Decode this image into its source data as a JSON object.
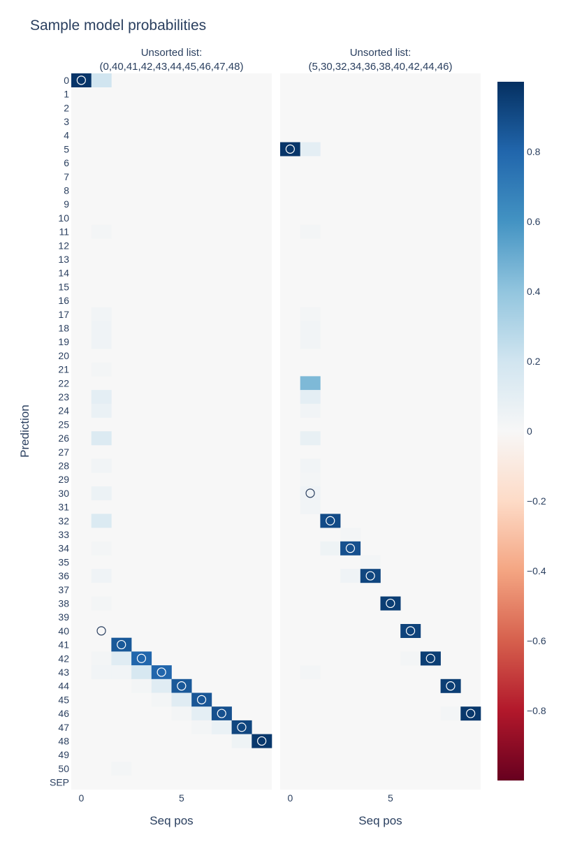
{
  "chart_data": {
    "type": "heatmap",
    "title": "Sample model probabilities",
    "ylabel": "Prediction",
    "y_categories": [
      "0",
      "1",
      "2",
      "3",
      "4",
      "5",
      "6",
      "7",
      "8",
      "9",
      "10",
      "11",
      "12",
      "13",
      "14",
      "15",
      "16",
      "17",
      "18",
      "19",
      "20",
      "21",
      "22",
      "23",
      "24",
      "25",
      "26",
      "27",
      "28",
      "29",
      "30",
      "31",
      "32",
      "33",
      "34",
      "35",
      "36",
      "37",
      "38",
      "39",
      "40",
      "41",
      "42",
      "43",
      "44",
      "45",
      "46",
      "47",
      "48",
      "49",
      "50",
      "SEP"
    ],
    "panels": [
      {
        "subtitle_line1": "Unsorted list:",
        "subtitle_line2": "(0,40,41,42,43,44,45,46,47,48)",
        "xlabel": "Seq pos",
        "x_ticks": [
          0,
          5
        ],
        "x_tick_labels": [
          "0",
          "5"
        ],
        "n_positions": 10,
        "cells": [
          {
            "pos": 0,
            "pred": 0,
            "value": 0.98
          },
          {
            "pos": 1,
            "pred": 0,
            "value": 0.2
          },
          {
            "pos": 1,
            "pred": 11,
            "value": 0.02
          },
          {
            "pos": 1,
            "pred": 17,
            "value": 0.03
          },
          {
            "pos": 1,
            "pred": 18,
            "value": 0.04
          },
          {
            "pos": 1,
            "pred": 19,
            "value": 0.04
          },
          {
            "pos": 1,
            "pred": 21,
            "value": 0.02
          },
          {
            "pos": 1,
            "pred": 23,
            "value": 0.1
          },
          {
            "pos": 1,
            "pred": 24,
            "value": 0.07
          },
          {
            "pos": 1,
            "pred": 26,
            "value": 0.14
          },
          {
            "pos": 1,
            "pred": 28,
            "value": 0.03
          },
          {
            "pos": 1,
            "pred": 30,
            "value": 0.06
          },
          {
            "pos": 1,
            "pred": 32,
            "value": 0.15
          },
          {
            "pos": 1,
            "pred": 34,
            "value": 0.02
          },
          {
            "pos": 1,
            "pred": 36,
            "value": 0.04
          },
          {
            "pos": 1,
            "pred": 38,
            "value": 0.02
          },
          {
            "pos": 1,
            "pred": 40,
            "value": 0.0
          },
          {
            "pos": 1,
            "pred": 42,
            "value": 0.02
          },
          {
            "pos": 1,
            "pred": 43,
            "value": 0.03
          },
          {
            "pos": 2,
            "pred": 41,
            "value": 0.85
          },
          {
            "pos": 2,
            "pred": 42,
            "value": 0.12
          },
          {
            "pos": 2,
            "pred": 43,
            "value": 0.03
          },
          {
            "pos": 2,
            "pred": 50,
            "value": 0.02
          },
          {
            "pos": 3,
            "pred": 42,
            "value": 0.8
          },
          {
            "pos": 3,
            "pred": 43,
            "value": 0.17
          },
          {
            "pos": 3,
            "pred": 44,
            "value": 0.02
          },
          {
            "pos": 4,
            "pred": 43,
            "value": 0.8
          },
          {
            "pos": 4,
            "pred": 44,
            "value": 0.12
          },
          {
            "pos": 4,
            "pred": 45,
            "value": 0.02
          },
          {
            "pos": 5,
            "pred": 44,
            "value": 0.85
          },
          {
            "pos": 5,
            "pred": 45,
            "value": 0.12
          },
          {
            "pos": 5,
            "pred": 46,
            "value": 0.02
          },
          {
            "pos": 6,
            "pred": 45,
            "value": 0.86
          },
          {
            "pos": 6,
            "pred": 46,
            "value": 0.1
          },
          {
            "pos": 6,
            "pred": 47,
            "value": 0.02
          },
          {
            "pos": 7,
            "pred": 46,
            "value": 0.88
          },
          {
            "pos": 7,
            "pred": 47,
            "value": 0.07
          },
          {
            "pos": 8,
            "pred": 47,
            "value": 0.92
          },
          {
            "pos": 8,
            "pred": 48,
            "value": 0.05
          },
          {
            "pos": 9,
            "pred": 48,
            "value": 0.97
          }
        ],
        "markers": [
          {
            "pos": 0,
            "pred": 0
          },
          {
            "pos": 1,
            "pred": 40
          },
          {
            "pos": 2,
            "pred": 41
          },
          {
            "pos": 3,
            "pred": 42
          },
          {
            "pos": 4,
            "pred": 43
          },
          {
            "pos": 5,
            "pred": 44
          },
          {
            "pos": 6,
            "pred": 45
          },
          {
            "pos": 7,
            "pred": 46
          },
          {
            "pos": 8,
            "pred": 47
          },
          {
            "pos": 9,
            "pred": 48
          }
        ]
      },
      {
        "subtitle_line1": "Unsorted list:",
        "subtitle_line2": "(5,30,32,34,36,38,40,42,44,46)",
        "xlabel": "Seq pos",
        "x_ticks": [
          0,
          5
        ],
        "x_tick_labels": [
          "0",
          "5"
        ],
        "n_positions": 10,
        "cells": [
          {
            "pos": 0,
            "pred": 5,
            "value": 0.98
          },
          {
            "pos": 1,
            "pred": 5,
            "value": 0.1
          },
          {
            "pos": 1,
            "pred": 11,
            "value": 0.02
          },
          {
            "pos": 1,
            "pred": 17,
            "value": 0.02
          },
          {
            "pos": 1,
            "pred": 18,
            "value": 0.03
          },
          {
            "pos": 1,
            "pred": 19,
            "value": 0.03
          },
          {
            "pos": 1,
            "pred": 22,
            "value": 0.45
          },
          {
            "pos": 1,
            "pred": 23,
            "value": 0.1
          },
          {
            "pos": 1,
            "pred": 24,
            "value": 0.03
          },
          {
            "pos": 1,
            "pred": 26,
            "value": 0.08
          },
          {
            "pos": 1,
            "pred": 28,
            "value": 0.03
          },
          {
            "pos": 1,
            "pred": 29,
            "value": 0.02
          },
          {
            "pos": 1,
            "pred": 30,
            "value": 0.04
          },
          {
            "pos": 1,
            "pred": 31,
            "value": 0.03
          },
          {
            "pos": 1,
            "pred": 43,
            "value": 0.02
          },
          {
            "pos": 2,
            "pred": 32,
            "value": 0.9
          },
          {
            "pos": 2,
            "pred": 34,
            "value": 0.05
          },
          {
            "pos": 3,
            "pred": 33,
            "value": 0.02
          },
          {
            "pos": 3,
            "pred": 34,
            "value": 0.88
          },
          {
            "pos": 3,
            "pred": 36,
            "value": 0.04
          },
          {
            "pos": 4,
            "pred": 35,
            "value": 0.02
          },
          {
            "pos": 4,
            "pred": 36,
            "value": 0.92
          },
          {
            "pos": 5,
            "pred": 38,
            "value": 0.95
          },
          {
            "pos": 6,
            "pred": 40,
            "value": 0.93
          },
          {
            "pos": 6,
            "pred": 42,
            "value": 0.02
          },
          {
            "pos": 7,
            "pred": 42,
            "value": 0.95
          },
          {
            "pos": 8,
            "pred": 44,
            "value": 0.95
          },
          {
            "pos": 8,
            "pred": 46,
            "value": 0.02
          },
          {
            "pos": 9,
            "pred": 46,
            "value": 0.97
          }
        ],
        "markers": [
          {
            "pos": 0,
            "pred": 5
          },
          {
            "pos": 1,
            "pred": 30
          },
          {
            "pos": 2,
            "pred": 32
          },
          {
            "pos": 3,
            "pred": 34
          },
          {
            "pos": 4,
            "pred": 36
          },
          {
            "pos": 5,
            "pred": 38
          },
          {
            "pos": 6,
            "pred": 40
          },
          {
            "pos": 7,
            "pred": 42
          },
          {
            "pos": 8,
            "pred": 44
          },
          {
            "pos": 9,
            "pred": 46
          }
        ]
      }
    ],
    "colorbar": {
      "range": [
        -1,
        1
      ],
      "ticks": [
        0.8,
        0.6,
        0.4,
        0.2,
        0,
        -0.2,
        -0.4,
        -0.6,
        -0.8
      ],
      "tick_labels": [
        "0.8",
        "0.6",
        "0.4",
        "0.2",
        "0",
        "−0.2",
        "−0.4",
        "−0.6",
        "−0.8"
      ],
      "colorscale": [
        "#053061",
        "#2166ac",
        "#4393c3",
        "#92c5de",
        "#d1e5f0",
        "#f7f7f7",
        "#fddbc7",
        "#f4a582",
        "#d6604d",
        "#b2182b",
        "#67001f"
      ]
    }
  }
}
